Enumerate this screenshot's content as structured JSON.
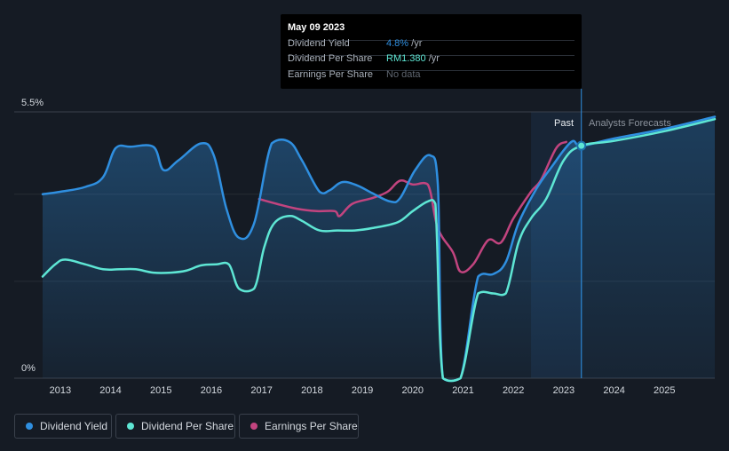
{
  "tooltip": {
    "date": "May 09 2023",
    "rows": [
      {
        "label": "Dividend Yield",
        "value": "4.8%",
        "unit": " /yr",
        "color": "#2f8fe0"
      },
      {
        "label": "Dividend Per Share",
        "value": "RM1.380",
        "unit": " /yr",
        "color": "#5ee6d4"
      },
      {
        "label": "Earnings Per Share",
        "value": "No data",
        "unit": "",
        "color": "#5f6670"
      }
    ]
  },
  "legend": [
    {
      "label": "Dividend Yield",
      "color": "#2f8fe0"
    },
    {
      "label": "Dividend Per Share",
      "color": "#5ee6d4"
    },
    {
      "label": "Earnings Per Share",
      "color": "#c2447f"
    }
  ],
  "chart_data": {
    "type": "line",
    "title": "",
    "ylim": [
      0,
      5.5
    ],
    "xlim": [
      2012.65,
      2026.0
    ],
    "y_tick_labels": [
      {
        "value": 5.5,
        "label": "5.5%"
      },
      {
        "value": 0,
        "label": "0%"
      }
    ],
    "x_ticks": [
      2013,
      2014,
      2015,
      2016,
      2017,
      2018,
      2019,
      2020,
      2021,
      2022,
      2023,
      2024,
      2025
    ],
    "gridlines": [
      3.8,
      2.0
    ],
    "past_label": "Past",
    "forecast_label": "Analysts Forecasts",
    "forecast_start": 2022.35,
    "highlight_date": 2023.35,
    "colors": {
      "dividend_yield": "#2f8fe0",
      "dividend_per_share": "#5ee6d4",
      "earnings_per_share": "#c2447f"
    },
    "series": [
      {
        "name": "Dividend Yield",
        "key": "dividend_yield",
        "points": [
          [
            2012.65,
            3.8
          ],
          [
            2013.0,
            3.85
          ],
          [
            2013.5,
            3.95
          ],
          [
            2013.85,
            4.15
          ],
          [
            2014.1,
            4.75
          ],
          [
            2014.4,
            4.78
          ],
          [
            2014.85,
            4.78
          ],
          [
            2015.05,
            4.3
          ],
          [
            2015.35,
            4.5
          ],
          [
            2015.8,
            4.85
          ],
          [
            2016.05,
            4.6
          ],
          [
            2016.3,
            3.5
          ],
          [
            2016.55,
            2.9
          ],
          [
            2016.85,
            3.2
          ],
          [
            2017.2,
            4.85
          ],
          [
            2017.55,
            4.88
          ],
          [
            2017.8,
            4.5
          ],
          [
            2018.15,
            3.85
          ],
          [
            2018.35,
            3.88
          ],
          [
            2018.6,
            4.05
          ],
          [
            2018.9,
            3.98
          ],
          [
            2019.2,
            3.82
          ],
          [
            2019.55,
            3.65
          ],
          [
            2019.75,
            3.72
          ],
          [
            2020.05,
            4.3
          ],
          [
            2020.35,
            4.6
          ],
          [
            2020.5,
            4.0
          ],
          [
            2020.6,
            0.0
          ],
          [
            2020.95,
            0.0
          ],
          [
            2021.3,
            2.1
          ],
          [
            2021.6,
            2.15
          ],
          [
            2021.85,
            2.4
          ],
          [
            2022.1,
            3.2
          ],
          [
            2022.45,
            3.9
          ],
          [
            2022.75,
            4.35
          ],
          [
            2023.15,
            4.88
          ],
          [
            2023.35,
            4.8
          ],
          [
            2024.0,
            4.95
          ],
          [
            2025.0,
            5.15
          ],
          [
            2026.0,
            5.4
          ]
        ]
      },
      {
        "name": "Dividend Per Share",
        "key": "dividend_per_share",
        "points": [
          [
            2012.65,
            2.1
          ],
          [
            2012.9,
            2.35
          ],
          [
            2013.1,
            2.45
          ],
          [
            2013.5,
            2.35
          ],
          [
            2013.85,
            2.25
          ],
          [
            2014.2,
            2.25
          ],
          [
            2014.5,
            2.25
          ],
          [
            2014.85,
            2.18
          ],
          [
            2015.2,
            2.18
          ],
          [
            2015.5,
            2.22
          ],
          [
            2015.8,
            2.33
          ],
          [
            2016.1,
            2.35
          ],
          [
            2016.35,
            2.35
          ],
          [
            2016.55,
            1.85
          ],
          [
            2016.85,
            1.85
          ],
          [
            2017.05,
            2.7
          ],
          [
            2017.25,
            3.2
          ],
          [
            2017.55,
            3.35
          ],
          [
            2017.8,
            3.25
          ],
          [
            2018.15,
            3.05
          ],
          [
            2018.5,
            3.05
          ],
          [
            2018.85,
            3.05
          ],
          [
            2019.2,
            3.1
          ],
          [
            2019.7,
            3.22
          ],
          [
            2020.0,
            3.45
          ],
          [
            2020.3,
            3.65
          ],
          [
            2020.45,
            3.6
          ],
          [
            2020.6,
            0.0
          ],
          [
            2020.95,
            0.0
          ],
          [
            2021.3,
            1.75
          ],
          [
            2021.6,
            1.75
          ],
          [
            2021.85,
            1.75
          ],
          [
            2022.1,
            2.8
          ],
          [
            2022.35,
            3.3
          ],
          [
            2022.65,
            3.7
          ],
          [
            2023.0,
            4.5
          ],
          [
            2023.35,
            4.8
          ],
          [
            2024.0,
            4.9
          ],
          [
            2025.0,
            5.1
          ],
          [
            2026.0,
            5.35
          ]
        ]
      },
      {
        "name": "Earnings Per Share",
        "key": "earnings_per_share",
        "points": [
          [
            2016.95,
            3.7
          ],
          [
            2017.3,
            3.6
          ],
          [
            2017.7,
            3.5
          ],
          [
            2018.1,
            3.45
          ],
          [
            2018.45,
            3.45
          ],
          [
            2018.55,
            3.35
          ],
          [
            2018.8,
            3.6
          ],
          [
            2019.2,
            3.72
          ],
          [
            2019.5,
            3.85
          ],
          [
            2019.75,
            4.08
          ],
          [
            2020.0,
            4.0
          ],
          [
            2020.3,
            4.0
          ],
          [
            2020.5,
            3.1
          ],
          [
            2020.8,
            2.6
          ],
          [
            2020.95,
            2.2
          ],
          [
            2021.2,
            2.35
          ],
          [
            2021.5,
            2.85
          ],
          [
            2021.75,
            2.8
          ],
          [
            2022.0,
            3.3
          ],
          [
            2022.35,
            3.85
          ],
          [
            2022.55,
            4.1
          ],
          [
            2022.85,
            4.75
          ],
          [
            2023.05,
            4.88
          ]
        ]
      }
    ]
  }
}
